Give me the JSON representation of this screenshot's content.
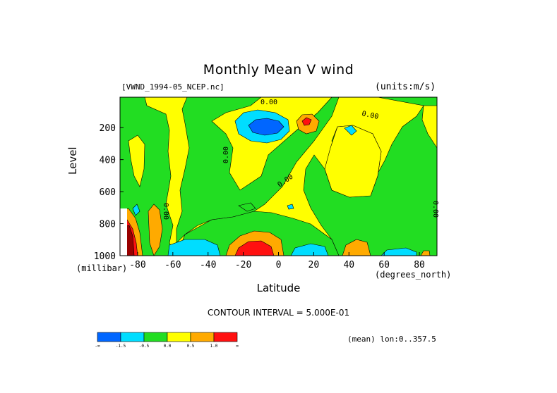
{
  "chart_data": {
    "type": "contour",
    "title": "Monthly Mean V wind",
    "dataset": "[VWND_1994-05_NCEP.nc]",
    "units": "(units:m/s)",
    "ylabel": "Level",
    "yunit": "(millibar)",
    "xlabel": "Latitude",
    "xunit": "(degrees_north)",
    "xlim": [
      -90,
      90
    ],
    "ylim": [
      1000,
      10
    ],
    "x_ticks": [
      -80,
      -60,
      -40,
      -20,
      0,
      20,
      40,
      60,
      80
    ],
    "x_tick_labels": [
      "-80",
      "-60",
      "-40",
      "-20",
      "0",
      "20",
      "40",
      "60",
      "80"
    ],
    "y_ticks": [
      200,
      400,
      600,
      800,
      1000
    ],
    "y_tick_labels": [
      "200",
      "400",
      "600",
      "800",
      "1000"
    ],
    "contour_interval": "CONTOUR INTERVAL = 5.000E-01",
    "contour_labels": [
      "0.00",
      "0.00",
      "0.00",
      "0.00",
      "0.00",
      "0.00"
    ],
    "mean_note": "(mean) lon:0..357.5",
    "colorbar": {
      "bins": [
        {
          "color": "#0066ff"
        },
        {
          "color": "#00ddff"
        },
        {
          "color": "#22dd22"
        },
        {
          "color": "#ffff00"
        },
        {
          "color": "#ffaa00"
        },
        {
          "color": "#ff1010"
        }
      ],
      "labels": [
        "-∞",
        "-1.5",
        "-0.5",
        "0.0",
        "0.5",
        "1.0",
        "∞"
      ]
    },
    "colors": {
      "strong_negative": "#0066ff",
      "negative": "#00ddff",
      "near_zero_negative": "#22dd22",
      "near_zero_positive": "#ffff00",
      "positive": "#ffaa00",
      "strong_positive": "#ff1010",
      "extreme_positive": "#990000"
    }
  }
}
